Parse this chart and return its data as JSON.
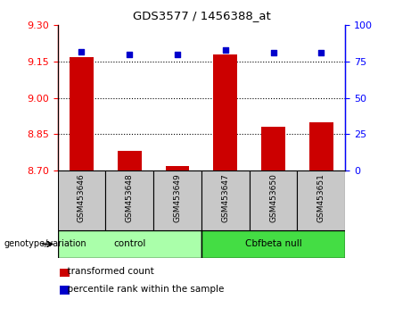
{
  "title": "GDS3577 / 1456388_at",
  "samples": [
    "GSM453646",
    "GSM453648",
    "GSM453649",
    "GSM453647",
    "GSM453650",
    "GSM453651"
  ],
  "bar_values": [
    9.17,
    8.78,
    8.72,
    9.18,
    8.88,
    8.9
  ],
  "percentile_values": [
    82,
    80,
    80,
    83,
    81,
    81
  ],
  "groups": [
    {
      "label": "control",
      "indices": [
        0,
        1,
        2
      ],
      "color": "#AAFFAA"
    },
    {
      "label": "Cbfbeta null",
      "indices": [
        3,
        4,
        5
      ],
      "color": "#44DD44"
    }
  ],
  "ylim_left": [
    8.7,
    9.3
  ],
  "ylim_right": [
    0,
    100
  ],
  "yticks_left": [
    8.7,
    8.85,
    9.0,
    9.15,
    9.3
  ],
  "yticks_right": [
    0,
    25,
    50,
    75,
    100
  ],
  "bar_color": "#CC0000",
  "dot_color": "#0000CC",
  "bar_width": 0.5,
  "grid_lines": [
    8.85,
    9.0,
    9.15
  ],
  "legend_red": "transformed count",
  "legend_blue": "percentile rank within the sample",
  "group_label_prefix": "genotype/variation",
  "tick_box_color": "#C8C8C8",
  "label_box_color": "#C8C8C8"
}
